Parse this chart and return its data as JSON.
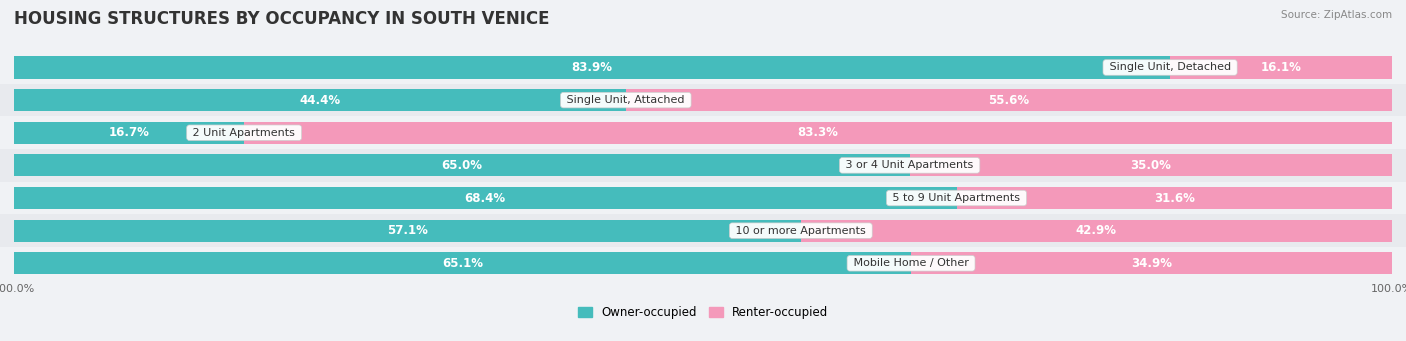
{
  "title": "HOUSING STRUCTURES BY OCCUPANCY IN SOUTH VENICE",
  "source": "Source: ZipAtlas.com",
  "categories": [
    "Single Unit, Detached",
    "Single Unit, Attached",
    "2 Unit Apartments",
    "3 or 4 Unit Apartments",
    "5 to 9 Unit Apartments",
    "10 or more Apartments",
    "Mobile Home / Other"
  ],
  "owner_pct": [
    83.9,
    44.4,
    16.7,
    65.0,
    68.4,
    57.1,
    65.1
  ],
  "renter_pct": [
    16.1,
    55.6,
    83.3,
    35.0,
    31.6,
    42.9,
    34.9
  ],
  "owner_color": "#45BCBC",
  "renter_color": "#F499BA",
  "owner_light_color": "#A8D8D8",
  "renter_light_color": "#F9C4D5",
  "title_fontsize": 12,
  "label_fontsize": 8.5,
  "bar_height": 0.68,
  "row_bg_colors": [
    "#f0f2f5",
    "#e8eaee"
  ],
  "text_color_dark": "#555555",
  "text_color_white": "#ffffff"
}
